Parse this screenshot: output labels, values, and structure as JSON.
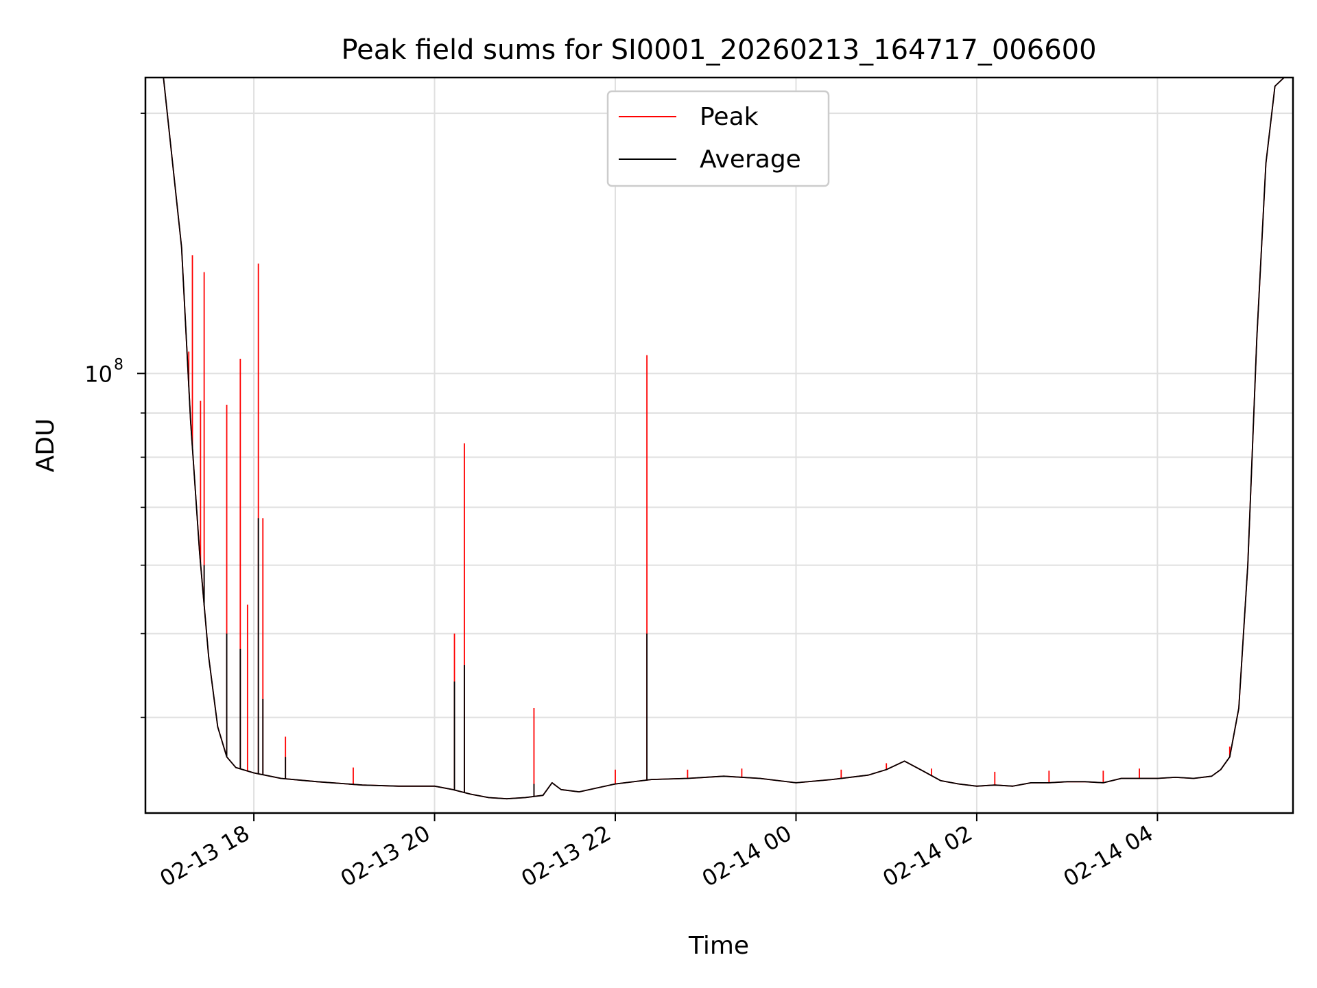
{
  "chart_data": {
    "type": "line",
    "title": "Peak field sums for SI0001_20260213_164717_006600",
    "xlabel": "Time",
    "ylabel": "ADU",
    "x_unit": "hours since 02-13 00:00",
    "xlim": [
      16.8,
      29.5
    ],
    "yscale": "log",
    "ylim": [
      31000000,
      220000000
    ],
    "major_y_ticks": [
      {
        "value": 100000000,
        "base": "10",
        "exp": "8"
      }
    ],
    "minor_y_ticks": [
      40000000,
      50000000,
      60000000,
      70000000,
      80000000,
      90000000,
      200000000
    ],
    "x_ticks": [
      {
        "value": 18,
        "label": "02-13 18"
      },
      {
        "value": 20,
        "label": "02-13 20"
      },
      {
        "value": 22,
        "label": "02-13 22"
      },
      {
        "value": 24,
        "label": "02-14 00"
      },
      {
        "value": 26,
        "label": "02-14 02"
      },
      {
        "value": 28,
        "label": "02-14 04"
      }
    ],
    "grid": true,
    "legend": {
      "position": "upper-center",
      "entries": [
        {
          "name": "Peak",
          "color": "#ff0000"
        },
        {
          "name": "Average",
          "color": "#000000"
        }
      ]
    },
    "series": [
      {
        "name": "Peak",
        "color": "#ff0000",
        "x": [
          16.8,
          17.0,
          17.2,
          17.3,
          17.4,
          17.5,
          17.6,
          17.7,
          17.8,
          18.0,
          18.3,
          18.7,
          19.2,
          19.6,
          20.0,
          20.2,
          20.4,
          20.6,
          20.8,
          21.0,
          21.2,
          21.3,
          21.4,
          21.6,
          22.0,
          22.4,
          22.8,
          23.2,
          23.6,
          24.0,
          24.4,
          24.8,
          25.0,
          25.2,
          25.4,
          25.6,
          25.8,
          26.0,
          26.2,
          26.4,
          26.6,
          26.8,
          27.0,
          27.2,
          27.4,
          27.6,
          27.8,
          28.0,
          28.2,
          28.4,
          28.6,
          28.7,
          28.8,
          28.9,
          29.0,
          29.1,
          29.2,
          29.3,
          29.5
        ],
        "y": [
          225000000,
          220000000,
          140000000,
          88000000,
          62000000,
          47000000,
          39000000,
          36000000,
          35000000,
          34500000,
          34000000,
          33700000,
          33400000,
          33300000,
          33300000,
          33000000,
          32600000,
          32300000,
          32200000,
          32300000,
          32500000,
          33600000,
          33000000,
          32800000,
          33500000,
          33900000,
          34000000,
          34200000,
          34000000,
          33600000,
          33900000,
          34300000,
          34800000,
          35600000,
          34700000,
          33800000,
          33500000,
          33300000,
          33400000,
          33300000,
          33600000,
          33600000,
          33700000,
          33700000,
          33600000,
          34000000,
          34000000,
          34000000,
          34100000,
          34000000,
          34200000,
          34800000,
          36000000,
          41000000,
          60000000,
          110000000,
          175000000,
          215000000,
          225000000
        ],
        "spikes": [
          [
            17.28,
            106000000
          ],
          [
            17.32,
            137000000
          ],
          [
            17.41,
            93000000
          ],
          [
            17.45,
            131000000
          ],
          [
            17.7,
            92000000
          ],
          [
            17.85,
            104000000
          ],
          [
            17.93,
            54000000
          ],
          [
            18.05,
            134000000
          ],
          [
            18.1,
            68000000
          ],
          [
            18.35,
            38000000
          ],
          [
            19.1,
            35000000
          ],
          [
            20.22,
            50000000
          ],
          [
            20.33,
            83000000
          ],
          [
            21.1,
            41000000
          ],
          [
            22.35,
            105000000
          ],
          [
            22.0,
            34800000
          ],
          [
            22.8,
            34800000
          ],
          [
            23.4,
            34900000
          ],
          [
            24.5,
            34800000
          ],
          [
            25.0,
            35400000
          ],
          [
            25.5,
            34900000
          ],
          [
            26.2,
            34600000
          ],
          [
            26.8,
            34700000
          ],
          [
            27.4,
            34700000
          ],
          [
            27.8,
            34900000
          ],
          [
            28.8,
            37000000
          ]
        ]
      },
      {
        "name": "Average",
        "color": "#000000",
        "x": [
          16.8,
          17.0,
          17.2,
          17.3,
          17.4,
          17.5,
          17.6,
          17.7,
          17.8,
          18.0,
          18.3,
          18.7,
          19.2,
          19.6,
          20.0,
          20.2,
          20.4,
          20.6,
          20.8,
          21.0,
          21.2,
          21.3,
          21.4,
          21.6,
          22.0,
          22.4,
          22.8,
          23.2,
          23.6,
          24.0,
          24.4,
          24.8,
          25.0,
          25.2,
          25.4,
          25.6,
          25.8,
          26.0,
          26.2,
          26.4,
          26.6,
          26.8,
          27.0,
          27.2,
          27.4,
          27.6,
          27.8,
          28.0,
          28.2,
          28.4,
          28.6,
          28.7,
          28.8,
          28.9,
          29.0,
          29.1,
          29.2,
          29.3,
          29.5
        ],
        "y": [
          225000000,
          220000000,
          140000000,
          88000000,
          62000000,
          47000000,
          39000000,
          36000000,
          35000000,
          34500000,
          34000000,
          33700000,
          33400000,
          33300000,
          33300000,
          33000000,
          32600000,
          32300000,
          32200000,
          32300000,
          32500000,
          33600000,
          33000000,
          32800000,
          33500000,
          33900000,
          34000000,
          34200000,
          34000000,
          33600000,
          33900000,
          34300000,
          34800000,
          35600000,
          34700000,
          33800000,
          33500000,
          33300000,
          33400000,
          33300000,
          33600000,
          33600000,
          33700000,
          33700000,
          33600000,
          34000000,
          34000000,
          34000000,
          34100000,
          34000000,
          34200000,
          34800000,
          36000000,
          41000000,
          60000000,
          110000000,
          175000000,
          215000000,
          225000000
        ],
        "spikes": [
          [
            17.45,
            60000000
          ],
          [
            17.7,
            50000000
          ],
          [
            17.85,
            48000000
          ],
          [
            18.05,
            68000000
          ],
          [
            18.1,
            42000000
          ],
          [
            18.35,
            36000000
          ],
          [
            20.22,
            44000000
          ],
          [
            20.33,
            46000000
          ],
          [
            21.1,
            33500000
          ],
          [
            22.35,
            50000000
          ]
        ]
      }
    ]
  }
}
